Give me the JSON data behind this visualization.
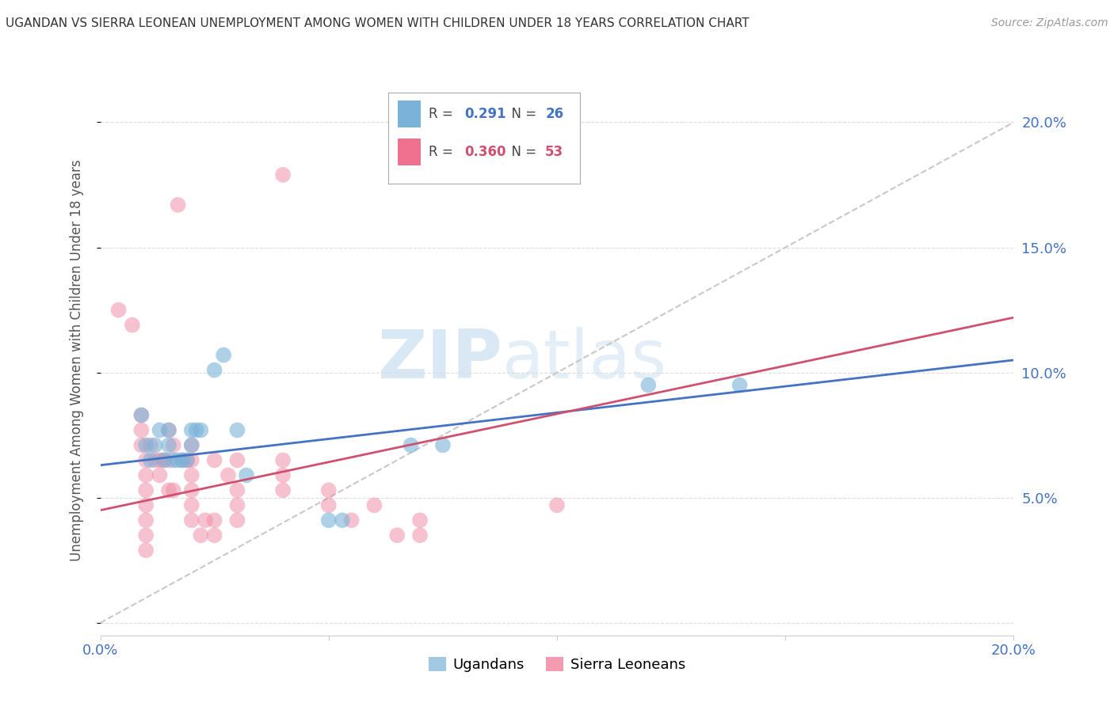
{
  "title": "UGANDAN VS SIERRA LEONEAN UNEMPLOYMENT AMONG WOMEN WITH CHILDREN UNDER 18 YEARS CORRELATION CHART",
  "source": "Source: ZipAtlas.com",
  "ylabel": "Unemployment Among Women with Children Under 18 years",
  "xlim": [
    0.0,
    0.2
  ],
  "ylim": [
    -0.005,
    0.215
  ],
  "yticks": [
    0.0,
    0.05,
    0.1,
    0.15,
    0.2
  ],
  "ytick_labels": [
    "",
    "5.0%",
    "10.0%",
    "15.0%",
    "20.0%"
  ],
  "xticks": [
    0.0,
    0.05,
    0.1,
    0.15,
    0.2
  ],
  "xtick_labels": [
    "0.0%",
    "",
    "",
    "",
    "20.0%"
  ],
  "legend_entries": [
    {
      "label": "Ugandans",
      "R": "0.291",
      "N": "26",
      "color": "#7ab3d9"
    },
    {
      "label": "Sierra Leoneans",
      "R": "0.360",
      "N": "53",
      "color": "#f07090"
    }
  ],
  "watermark_zip": "ZIP",
  "watermark_atlas": "atlas",
  "background_color": "#ffffff",
  "grid_color": "#dddddd",
  "uganda_color": "#7ab3d9",
  "sl_color": "#f090a8",
  "uganda_line_color": "#4472c4",
  "sl_line_color": "#d05070",
  "diagonal_color": "#c8c8c8",
  "uganda_scatter": [
    [
      0.009,
      0.083
    ],
    [
      0.01,
      0.071
    ],
    [
      0.011,
      0.065
    ],
    [
      0.012,
      0.071
    ],
    [
      0.013,
      0.077
    ],
    [
      0.014,
      0.065
    ],
    [
      0.015,
      0.071
    ],
    [
      0.015,
      0.077
    ],
    [
      0.016,
      0.065
    ],
    [
      0.017,
      0.065
    ],
    [
      0.018,
      0.065
    ],
    [
      0.019,
      0.065
    ],
    [
      0.02,
      0.071
    ],
    [
      0.02,
      0.077
    ],
    [
      0.021,
      0.077
    ],
    [
      0.022,
      0.077
    ],
    [
      0.025,
      0.101
    ],
    [
      0.027,
      0.107
    ],
    [
      0.03,
      0.077
    ],
    [
      0.032,
      0.059
    ],
    [
      0.05,
      0.041
    ],
    [
      0.053,
      0.041
    ],
    [
      0.068,
      0.071
    ],
    [
      0.075,
      0.071
    ],
    [
      0.12,
      0.095
    ],
    [
      0.14,
      0.095
    ]
  ],
  "sl_scatter": [
    [
      0.004,
      0.125
    ],
    [
      0.007,
      0.119
    ],
    [
      0.009,
      0.071
    ],
    [
      0.009,
      0.077
    ],
    [
      0.009,
      0.083
    ],
    [
      0.01,
      0.065
    ],
    [
      0.01,
      0.059
    ],
    [
      0.01,
      0.053
    ],
    [
      0.01,
      0.047
    ],
    [
      0.01,
      0.041
    ],
    [
      0.01,
      0.035
    ],
    [
      0.01,
      0.029
    ],
    [
      0.011,
      0.071
    ],
    [
      0.012,
      0.065
    ],
    [
      0.013,
      0.065
    ],
    [
      0.013,
      0.059
    ],
    [
      0.014,
      0.065
    ],
    [
      0.015,
      0.077
    ],
    [
      0.015,
      0.065
    ],
    [
      0.015,
      0.053
    ],
    [
      0.016,
      0.053
    ],
    [
      0.016,
      0.071
    ],
    [
      0.017,
      0.167
    ],
    [
      0.018,
      0.065
    ],
    [
      0.019,
      0.065
    ],
    [
      0.02,
      0.071
    ],
    [
      0.02,
      0.065
    ],
    [
      0.02,
      0.059
    ],
    [
      0.02,
      0.053
    ],
    [
      0.02,
      0.047
    ],
    [
      0.02,
      0.041
    ],
    [
      0.022,
      0.035
    ],
    [
      0.023,
      0.041
    ],
    [
      0.025,
      0.065
    ],
    [
      0.025,
      0.041
    ],
    [
      0.025,
      0.035
    ],
    [
      0.028,
      0.059
    ],
    [
      0.03,
      0.065
    ],
    [
      0.03,
      0.053
    ],
    [
      0.03,
      0.047
    ],
    [
      0.03,
      0.041
    ],
    [
      0.04,
      0.179
    ],
    [
      0.04,
      0.065
    ],
    [
      0.04,
      0.059
    ],
    [
      0.04,
      0.053
    ],
    [
      0.05,
      0.053
    ],
    [
      0.05,
      0.047
    ],
    [
      0.055,
      0.041
    ],
    [
      0.06,
      0.047
    ],
    [
      0.065,
      0.035
    ],
    [
      0.07,
      0.041
    ],
    [
      0.07,
      0.035
    ],
    [
      0.1,
      0.047
    ]
  ],
  "uganda_line": {
    "x0": 0.0,
    "y0": 0.063,
    "x1": 0.2,
    "y1": 0.105
  },
  "sl_line": {
    "x0": 0.0,
    "y0": 0.045,
    "x1": 0.2,
    "y1": 0.122
  },
  "diagonal_line": {
    "x0": 0.0,
    "y0": 0.0,
    "x1": 0.2,
    "y1": 0.2
  }
}
